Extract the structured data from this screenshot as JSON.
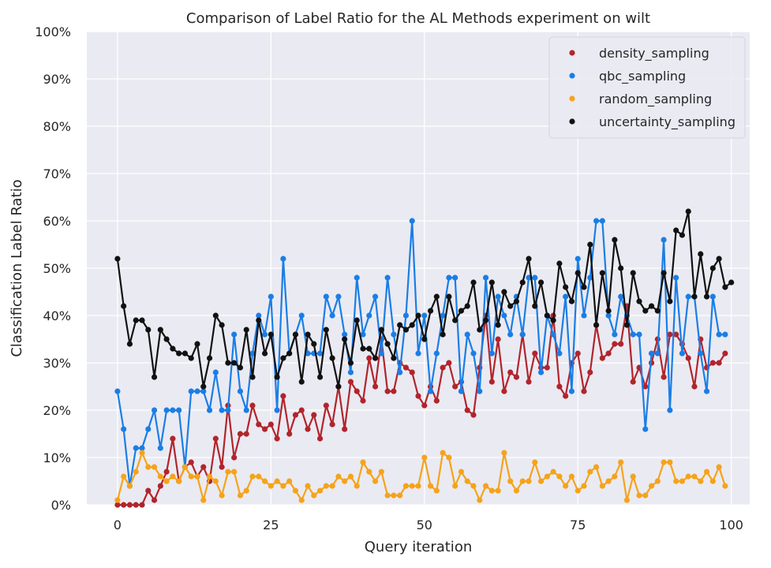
{
  "chart_data": {
    "type": "line",
    "title": "Comparison of Label Ratio for the AL Methods experiment on wilt",
    "xlabel": "Query iteration",
    "ylabel": "Classification Label Ratio",
    "xlim": [
      -5,
      103
    ],
    "ylim": [
      0,
      100
    ],
    "xticks": [
      0,
      25,
      50,
      75,
      100
    ],
    "yticks": [
      0,
      10,
      20,
      30,
      40,
      50,
      60,
      70,
      80,
      90,
      100
    ],
    "ytick_labels": [
      "0%",
      "10%",
      "20%",
      "30%",
      "40%",
      "50%",
      "60%",
      "70%",
      "80%",
      "90%",
      "100%"
    ],
    "grid": true,
    "legend_position": "top-right",
    "background_color": "#eaeaf2",
    "series": [
      {
        "name": "density_sampling",
        "color": "#b2242b",
        "values": [
          0,
          0,
          0,
          0,
          0,
          3,
          1,
          4,
          7,
          14,
          5,
          8,
          9,
          6,
          8,
          5,
          14,
          8,
          21,
          10,
          15,
          15,
          21,
          17,
          16,
          17,
          14,
          23,
          15,
          19,
          20,
          16,
          19,
          14,
          21,
          17,
          25,
          16,
          26,
          24,
          22,
          31,
          25,
          35,
          24,
          24,
          30,
          29,
          28,
          23,
          21,
          25,
          22,
          29,
          30,
          25,
          26,
          20,
          19,
          29,
          40,
          26,
          35,
          24,
          28,
          27,
          36,
          26,
          32,
          29,
          29,
          40,
          25,
          23,
          30,
          32,
          24,
          28,
          38,
          31,
          32,
          34,
          34,
          42,
          26,
          29,
          25,
          30,
          35,
          27,
          36,
          36,
          34,
          31,
          25,
          35,
          29,
          30,
          30,
          32
        ]
      },
      {
        "name": "qbc_sampling",
        "color": "#1a7ee6",
        "values": [
          24,
          16,
          4,
          12,
          12,
          16,
          20,
          12,
          20,
          20,
          20,
          8,
          24,
          24,
          24,
          20,
          28,
          20,
          20,
          36,
          24,
          20,
          32,
          40,
          36,
          44,
          20,
          52,
          32,
          36,
          40,
          32,
          32,
          32,
          44,
          40,
          44,
          36,
          28,
          48,
          36,
          40,
          44,
          32,
          48,
          36,
          28,
          40,
          60,
          32,
          40,
          24,
          32,
          40,
          48,
          48,
          24,
          36,
          32,
          24,
          48,
          32,
          44,
          40,
          36,
          44,
          36,
          48,
          48,
          28,
          40,
          36,
          32,
          44,
          24,
          52,
          40,
          48,
          60,
          60,
          40,
          36,
          44,
          40,
          36,
          36,
          16,
          32,
          32,
          56,
          20,
          48,
          32,
          44,
          44,
          32,
          24,
          44,
          36,
          36
        ]
      },
      {
        "name": "random_sampling",
        "color": "#f5a31a",
        "values": [
          1,
          6,
          4,
          7,
          11,
          8,
          8,
          6,
          5,
          6,
          5,
          8,
          6,
          6,
          1,
          6,
          5,
          2,
          7,
          7,
          2,
          3,
          6,
          6,
          5,
          4,
          5,
          4,
          5,
          3,
          1,
          4,
          2,
          3,
          4,
          4,
          6,
          5,
          6,
          4,
          9,
          7,
          5,
          7,
          2,
          2,
          2,
          4,
          4,
          4,
          10,
          4,
          3,
          11,
          10,
          4,
          7,
          5,
          4,
          1,
          4,
          3,
          3,
          11,
          5,
          3,
          5,
          5,
          9,
          5,
          6,
          7,
          6,
          4,
          6,
          3,
          4,
          7,
          8,
          4,
          5,
          6,
          9,
          1,
          6,
          2,
          2,
          4,
          5,
          9,
          9,
          5,
          5,
          6,
          6,
          5,
          7,
          5,
          8,
          4
        ]
      },
      {
        "name": "uncertainty_sampling",
        "color": "#111111",
        "values": [
          52,
          42,
          34,
          39,
          39,
          37,
          27,
          37,
          35,
          33,
          32,
          32,
          31,
          34,
          25,
          31,
          40,
          38,
          30,
          30,
          29,
          37,
          27,
          39,
          32,
          36,
          27,
          31,
          32,
          36,
          26,
          36,
          34,
          27,
          37,
          31,
          25,
          35,
          30,
          39,
          33,
          33,
          31,
          37,
          34,
          31,
          38,
          37,
          38,
          40,
          35,
          41,
          44,
          36,
          44,
          39,
          41,
          42,
          47,
          37,
          39,
          47,
          38,
          45,
          42,
          43,
          47,
          52,
          42,
          47,
          40,
          39,
          51,
          46,
          43,
          49,
          46,
          55,
          38,
          49,
          41,
          56,
          50,
          38,
          49,
          43,
          41,
          42,
          41,
          49,
          43,
          58,
          57,
          62,
          44,
          53,
          44,
          50,
          52,
          46,
          47
        ]
      }
    ]
  }
}
